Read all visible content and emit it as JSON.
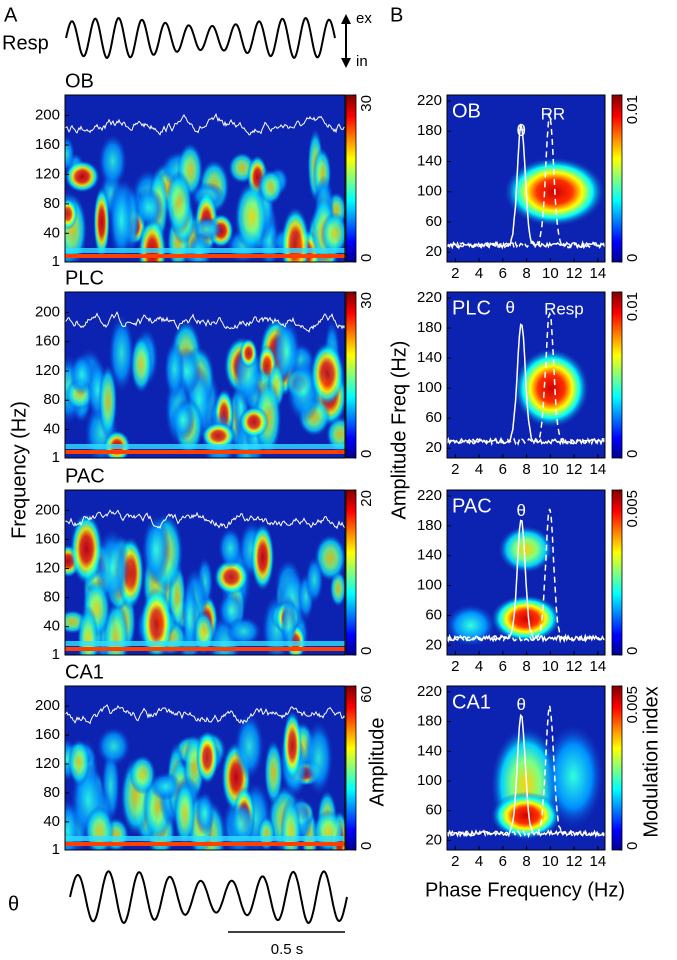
{
  "figure": {
    "panel_a": "A",
    "panel_b": "B",
    "resp_label": "Resp",
    "ex_label": "ex",
    "in_label": "in",
    "theta_label": "θ",
    "scale_bar": "0.5 s",
    "a_ylabel": "Frequency (Hz)",
    "a_colorbar_label": "Amplitude",
    "b_ylabel": "Amplitude Freq (Hz)",
    "b_xlabel": "Phase Frequency (Hz)",
    "b_colorbar_label": "Modulation index"
  },
  "chart_data": [
    {
      "type": "spectrogram",
      "title": "OB",
      "ylim": [
        1,
        228
      ],
      "yticks": [
        1,
        40,
        80,
        120,
        160,
        200
      ],
      "clim": [
        0,
        30
      ],
      "cticks": [
        0,
        30
      ]
    },
    {
      "type": "spectrogram",
      "title": "PLC",
      "ylim": [
        1,
        228
      ],
      "yticks": [
        1,
        40,
        80,
        120,
        160,
        200
      ],
      "clim": [
        0,
        30
      ],
      "cticks": [
        0,
        30
      ]
    },
    {
      "type": "spectrogram",
      "title": "PAC",
      "ylim": [
        1,
        228
      ],
      "yticks": [
        1,
        40,
        80,
        120,
        160,
        200
      ],
      "clim": [
        0,
        20
      ],
      "cticks": [
        0,
        20
      ]
    },
    {
      "type": "spectrogram",
      "title": "CA1",
      "ylim": [
        1,
        228
      ],
      "yticks": [
        1,
        40,
        80,
        120,
        160,
        200
      ],
      "clim": [
        0,
        60
      ],
      "cticks": [
        0,
        60
      ]
    },
    {
      "type": "comodulogram",
      "title": "OB",
      "annotations": [
        "θ",
        "RR"
      ],
      "xlim": [
        1.3,
        14.6
      ],
      "xticks": [
        2,
        4,
        6,
        8,
        10,
        12,
        14
      ],
      "ylim": [
        7,
        228
      ],
      "yticks": [
        20,
        60,
        100,
        140,
        180,
        220
      ],
      "clim": [
        0,
        0.01
      ],
      "cticks": [
        0,
        0.01
      ]
    },
    {
      "type": "comodulogram",
      "title": "PLC",
      "annotations": [
        "θ",
        "Resp"
      ],
      "xlim": [
        1.3,
        14.6
      ],
      "xticks": [
        2,
        4,
        6,
        8,
        10,
        12,
        14
      ],
      "ylim": [
        7,
        228
      ],
      "yticks": [
        20,
        60,
        100,
        140,
        180,
        220
      ],
      "clim": [
        0,
        0.01
      ],
      "cticks": [
        0,
        0.01
      ]
    },
    {
      "type": "comodulogram",
      "title": "PAC",
      "annotations": [
        "θ"
      ],
      "xlim": [
        1.3,
        14.6
      ],
      "xticks": [
        2,
        4,
        6,
        8,
        10,
        12,
        14
      ],
      "ylim": [
        7,
        228
      ],
      "yticks": [
        20,
        60,
        100,
        140,
        180,
        220
      ],
      "clim": [
        0,
        0.005
      ],
      "cticks": [
        0,
        0.005
      ]
    },
    {
      "type": "comodulogram",
      "title": "CA1",
      "annotations": [
        "θ"
      ],
      "xlim": [
        1.3,
        14.6
      ],
      "xticks": [
        2,
        4,
        6,
        8,
        10,
        12,
        14
      ],
      "ylim": [
        7,
        228
      ],
      "yticks": [
        20,
        60,
        100,
        140,
        180,
        220
      ],
      "clim": [
        0,
        0.005
      ],
      "cticks": [
        0,
        0.005
      ]
    }
  ]
}
